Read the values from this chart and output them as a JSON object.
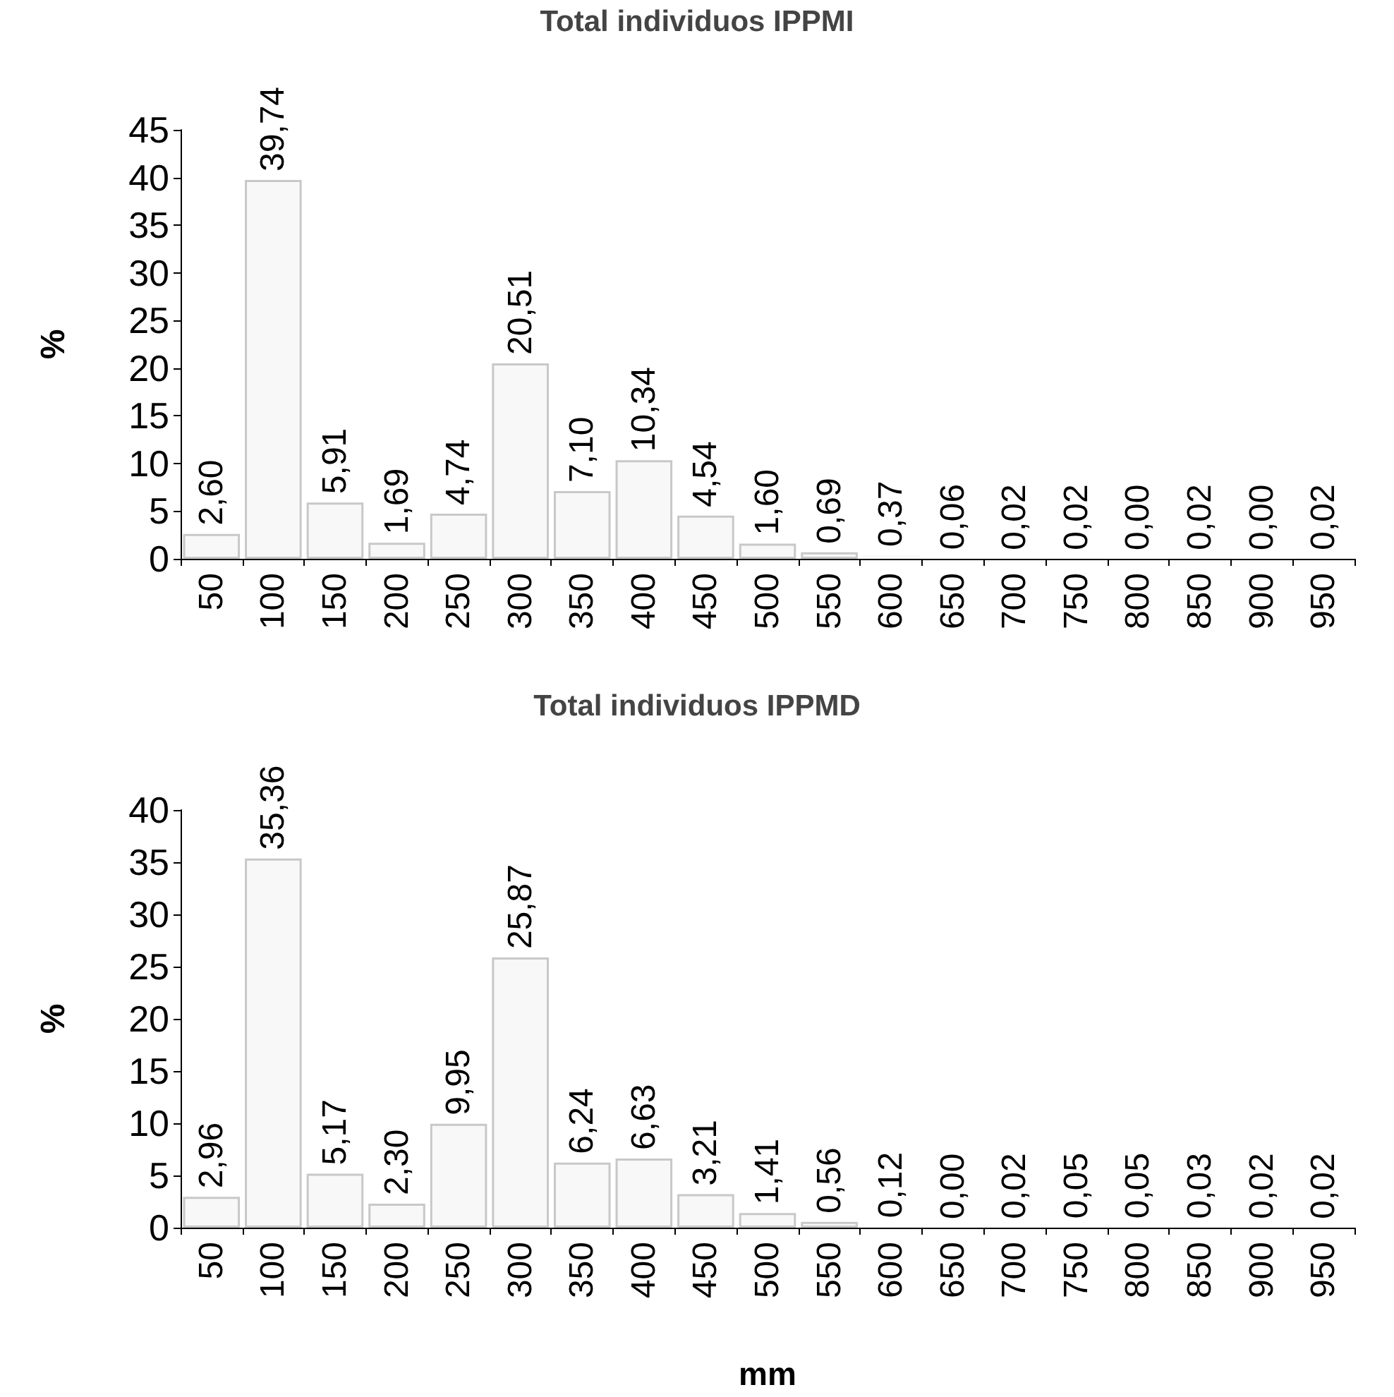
{
  "chart_data": [
    {
      "type": "bar",
      "title": "Total individuos IPPMI",
      "ylabel": "%",
      "color": "#f8f8f8",
      "ylim": [
        0,
        45
      ],
      "yticks": [
        0,
        5,
        10,
        15,
        20,
        25,
        30,
        35,
        40,
        45
      ],
      "categories": [
        "50",
        "100",
        "150",
        "200",
        "250",
        "300",
        "350",
        "400",
        "450",
        "500",
        "550",
        "600",
        "650",
        "700",
        "750",
        "800",
        "850",
        "900",
        "950"
      ],
      "values": [
        2.6,
        39.74,
        5.91,
        1.69,
        4.74,
        20.51,
        7.1,
        10.34,
        4.54,
        1.6,
        0.69,
        0.37,
        0.06,
        0.02,
        0.02,
        0.0,
        0.02,
        0.0,
        0.02
      ],
      "value_labels": [
        "2,60",
        "39,74",
        "5,91",
        "1,69",
        "4,74",
        "20,51",
        "7,10",
        "10,34",
        "4,54",
        "1,60",
        "0,69",
        "0,37",
        "0,06",
        "0,02",
        "0,02",
        "0,00",
        "0,02",
        "0,00",
        "0,02"
      ]
    },
    {
      "type": "bar",
      "title": "Total individuos IPPMD",
      "ylabel": "%",
      "xlabel": "mm",
      "color": "#f8f8f8",
      "ylim": [
        0,
        40
      ],
      "yticks": [
        0,
        5,
        10,
        15,
        20,
        25,
        30,
        35,
        40
      ],
      "categories": [
        "50",
        "100",
        "150",
        "200",
        "250",
        "300",
        "350",
        "400",
        "450",
        "500",
        "550",
        "600",
        "650",
        "700",
        "750",
        "800",
        "850",
        "900",
        "950"
      ],
      "values": [
        2.96,
        35.36,
        5.17,
        2.3,
        9.95,
        25.87,
        6.24,
        6.63,
        3.21,
        1.41,
        0.56,
        0.12,
        0.0,
        0.02,
        0.05,
        0.05,
        0.03,
        0.02,
        0.02
      ],
      "value_labels": [
        "2,96",
        "35,36",
        "5,17",
        "2,30",
        "9,95",
        "25,87",
        "6,24",
        "6,63",
        "3,21",
        "1,41",
        "0,56",
        "0,12",
        "0,00",
        "0,02",
        "0,05",
        "0,05",
        "0,03",
        "0,02",
        "0,02"
      ]
    }
  ]
}
